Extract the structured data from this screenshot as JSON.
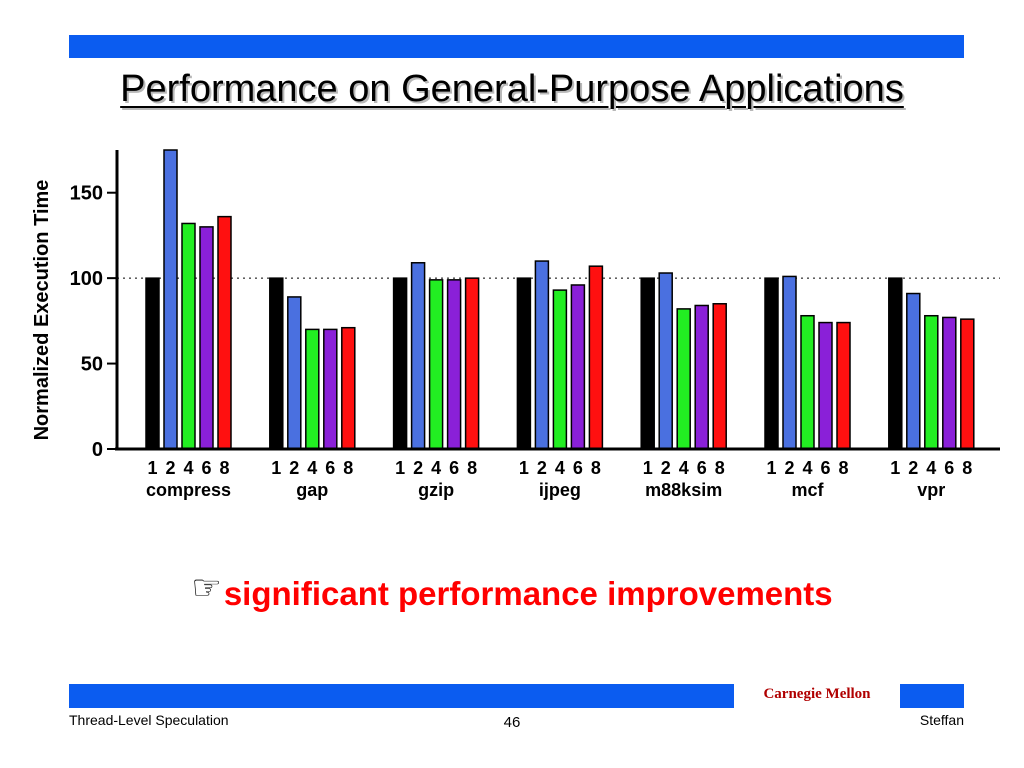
{
  "slide": {
    "title": "Performance on General-Purpose Applications",
    "callout": "significant performance improvements",
    "callout_icon": "pointing-hand-icon",
    "logo_text": "Carnegie Mellon",
    "footer_left": "Thread-Level Speculation",
    "footer_center": "46",
    "footer_right": "Steffan",
    "colors": {
      "banner": "#0b5cf0",
      "callout": "#ff0000",
      "logo": "#b00000"
    }
  },
  "chart_data": {
    "type": "bar",
    "ylabel": "Normalized Execution Time",
    "ylim": [
      0,
      175
    ],
    "yticks": [
      0,
      50,
      100,
      150
    ],
    "reference_line": 100,
    "x_tick_labels": [
      "1",
      "2",
      "4",
      "6",
      "8"
    ],
    "categories": [
      "compress",
      "gap",
      "gzip",
      "ijpeg",
      "m88ksim",
      "mcf",
      "vpr"
    ],
    "series": [
      {
        "color": "#000000",
        "values": [
          100,
          100,
          100,
          100,
          100,
          100,
          100
        ]
      },
      {
        "color": "#4a70e0",
        "values": [
          175,
          89,
          109,
          110,
          103,
          101,
          91
        ]
      },
      {
        "color": "#22ee22",
        "values": [
          132,
          70,
          99,
          93,
          82,
          78,
          78
        ]
      },
      {
        "color": "#8a20d8",
        "values": [
          130,
          70,
          99,
          96,
          84,
          74,
          77
        ]
      },
      {
        "color": "#ff1010",
        "values": [
          136,
          71,
          100,
          107,
          85,
          74,
          76
        ]
      }
    ]
  }
}
